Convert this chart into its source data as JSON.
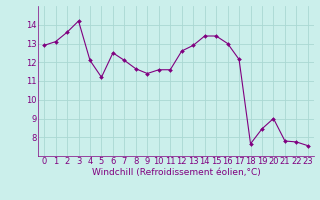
{
  "x": [
    0,
    1,
    2,
    3,
    4,
    5,
    6,
    7,
    8,
    9,
    10,
    11,
    12,
    13,
    14,
    15,
    16,
    17,
    18,
    19,
    20,
    21,
    22,
    23
  ],
  "y": [
    12.9,
    13.1,
    13.6,
    14.2,
    12.1,
    11.2,
    12.5,
    12.1,
    11.65,
    11.4,
    11.6,
    11.6,
    12.6,
    12.9,
    13.4,
    13.4,
    13.0,
    12.15,
    7.65,
    8.45,
    9.0,
    7.8,
    7.75,
    7.55
  ],
  "line_color": "#800080",
  "marker": "D",
  "marker_size": 2,
  "bg_color": "#cbefeb",
  "grid_color": "#aad8d3",
  "xlabel": "Windchill (Refroidissement éolien,°C)",
  "xlabel_color": "#800080",
  "xlabel_fontsize": 6.5,
  "tick_fontsize": 6,
  "tick_color": "#800080",
  "ylim": [
    7,
    15
  ],
  "xlim": [
    -0.5,
    23.5
  ],
  "yticks": [
    8,
    9,
    10,
    11,
    12,
    13,
    14
  ],
  "xticks": [
    0,
    1,
    2,
    3,
    4,
    5,
    6,
    7,
    8,
    9,
    10,
    11,
    12,
    13,
    14,
    15,
    16,
    17,
    18,
    19,
    20,
    21,
    22,
    23
  ]
}
